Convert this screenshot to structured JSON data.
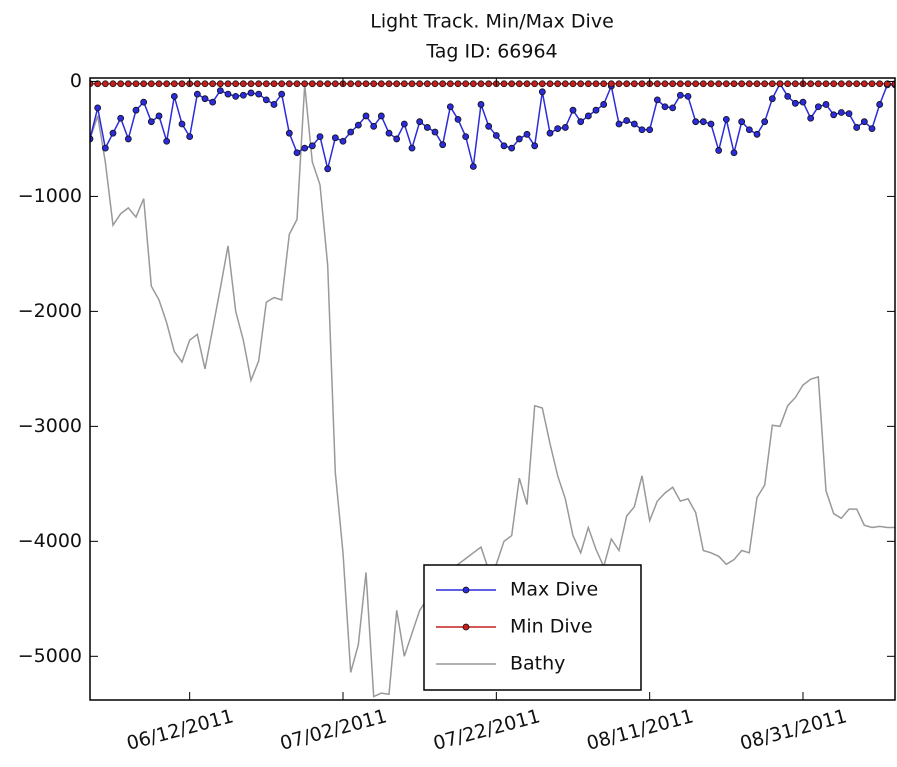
{
  "chart_data": {
    "type": "line",
    "title": "Light Track. Min/Max Dive",
    "subtitle": "Tag ID: 66964",
    "x": [
      "2011-05-30",
      "2011-05-31",
      "2011-06-01",
      "2011-06-02",
      "2011-06-03",
      "2011-06-04",
      "2011-06-05",
      "2011-06-06",
      "2011-06-07",
      "2011-06-08",
      "2011-06-09",
      "2011-06-10",
      "2011-06-11",
      "2011-06-12",
      "2011-06-13",
      "2011-06-14",
      "2011-06-15",
      "2011-06-16",
      "2011-06-17",
      "2011-06-18",
      "2011-06-19",
      "2011-06-20",
      "2011-06-21",
      "2011-06-22",
      "2011-06-23",
      "2011-06-24",
      "2011-06-25",
      "2011-06-26",
      "2011-06-27",
      "2011-06-28",
      "2011-06-29",
      "2011-06-30",
      "2011-07-01",
      "2011-07-02",
      "2011-07-03",
      "2011-07-04",
      "2011-07-05",
      "2011-07-06",
      "2011-07-07",
      "2011-07-08",
      "2011-07-09",
      "2011-07-10",
      "2011-07-11",
      "2011-07-12",
      "2011-07-13",
      "2011-07-14",
      "2011-07-15",
      "2011-07-16",
      "2011-07-17",
      "2011-07-18",
      "2011-07-19",
      "2011-07-20",
      "2011-07-21",
      "2011-07-22",
      "2011-07-23",
      "2011-07-24",
      "2011-07-25",
      "2011-07-26",
      "2011-07-27",
      "2011-07-28",
      "2011-07-29",
      "2011-07-30",
      "2011-07-31",
      "2011-08-01",
      "2011-08-02",
      "2011-08-03",
      "2011-08-04",
      "2011-08-05",
      "2011-08-06",
      "2011-08-07",
      "2011-08-08",
      "2011-08-09",
      "2011-08-10",
      "2011-08-11",
      "2011-08-12",
      "2011-08-13",
      "2011-08-14",
      "2011-08-15",
      "2011-08-16",
      "2011-08-17",
      "2011-08-18",
      "2011-08-19",
      "2011-08-20",
      "2011-08-21",
      "2011-08-22",
      "2011-08-23",
      "2011-08-24",
      "2011-08-25",
      "2011-08-26",
      "2011-08-27",
      "2011-08-28",
      "2011-08-29",
      "2011-08-30",
      "2011-08-31",
      "2011-09-01",
      "2011-09-02",
      "2011-09-03",
      "2011-09-04",
      "2011-09-05",
      "2011-09-06",
      "2011-09-07",
      "2011-09-08",
      "2011-09-09",
      "2011-09-10",
      "2011-09-11",
      "2011-09-12"
    ],
    "series": [
      {
        "name": "Max Dive",
        "color": "#2b2bdc",
        "marker": true,
        "values": [
          -500,
          -230,
          -580,
          -450,
          -320,
          -500,
          -250,
          -180,
          -350,
          -300,
          -520,
          -130,
          -370,
          -480,
          -110,
          -150,
          -180,
          -80,
          -110,
          -130,
          -120,
          -100,
          -110,
          -160,
          -200,
          -110,
          -450,
          -620,
          -580,
          -560,
          -480,
          -760,
          -490,
          -520,
          -440,
          -380,
          -300,
          -390,
          -300,
          -450,
          -500,
          -370,
          -580,
          -350,
          -400,
          -440,
          -550,
          -220,
          -330,
          -480,
          -740,
          -200,
          -390,
          -470,
          -560,
          -580,
          -500,
          -460,
          -560,
          -90,
          -450,
          -410,
          -400,
          -250,
          -350,
          -300,
          -250,
          -200,
          -40,
          -370,
          -340,
          -370,
          -420,
          -420,
          -160,
          -220,
          -230,
          -120,
          -130,
          -350,
          -350,
          -370,
          -600,
          -330,
          -620,
          -350,
          -420,
          -460,
          -350,
          -150,
          -20,
          -130,
          -190,
          -180,
          -320,
          -220,
          -200,
          -290,
          -270,
          -280,
          -400,
          -350,
          -410,
          -200,
          -30,
          -30
        ]
      },
      {
        "name": "Min Dive",
        "color": "#c42020",
        "marker": true,
        "values": [
          -20,
          -20,
          -20,
          -20,
          -20,
          -20,
          -20,
          -20,
          -20,
          -20,
          -20,
          -20,
          -20,
          -20,
          -20,
          -20,
          -20,
          -20,
          -20,
          -20,
          -20,
          -20,
          -20,
          -20,
          -20,
          -20,
          -20,
          -20,
          -20,
          -20,
          -20,
          -20,
          -20,
          -20,
          -20,
          -20,
          -20,
          -20,
          -20,
          -20,
          -20,
          -20,
          -20,
          -20,
          -20,
          -20,
          -20,
          -20,
          -20,
          -20,
          -20,
          -20,
          -20,
          -20,
          -20,
          -20,
          -20,
          -20,
          -20,
          -20,
          -20,
          -20,
          -20,
          -20,
          -20,
          -20,
          -20,
          -20,
          -20,
          -20,
          -20,
          -20,
          -20,
          -20,
          -20,
          -20,
          -20,
          -20,
          -20,
          -20,
          -20,
          -20,
          -20,
          -20,
          -20,
          -20,
          -20,
          -20,
          -20,
          -20,
          -20,
          -20,
          -20,
          -20,
          -20,
          -20,
          -20,
          -20,
          -20,
          -20,
          -20,
          -20,
          -20,
          -20,
          -20,
          -20
        ]
      },
      {
        "name": "Bathy",
        "color": "#999999",
        "marker": false,
        "values": [
          -500,
          -300,
          -700,
          -1250,
          -1150,
          -1100,
          -1180,
          -1020,
          -1780,
          -1900,
          -2100,
          -2350,
          -2440,
          -2250,
          -2200,
          -2500,
          -2150,
          -1800,
          -1430,
          -2000,
          -2250,
          -2600,
          -2430,
          -1920,
          -1880,
          -1900,
          -1330,
          -1200,
          -30,
          -700,
          -900,
          -1600,
          -3400,
          -4100,
          -5140,
          -4900,
          -4270,
          -5350,
          -5320,
          -5330,
          -4600,
          -5000,
          -4800,
          -4600,
          -4500,
          -4400,
          -4300,
          -4250,
          -4200,
          -4150,
          -4100,
          -4050,
          -4250,
          -4200,
          -4000,
          -3950,
          -3450,
          -3680,
          -2820,
          -2840,
          -3150,
          -3430,
          -3630,
          -3950,
          -4100,
          -3880,
          -4070,
          -4220,
          -3980,
          -4080,
          -3780,
          -3700,
          -3430,
          -3820,
          -3650,
          -3580,
          -3530,
          -3650,
          -3630,
          -3750,
          -4080,
          -4100,
          -4130,
          -4200,
          -4160,
          -4080,
          -4100,
          -3620,
          -3510,
          -2990,
          -3000,
          -2820,
          -2750,
          -2640,
          -2590,
          -2570,
          -3560,
          -3760,
          -3800,
          -3720,
          -3720,
          -3860,
          -3880,
          -3870,
          -3880,
          -3880
        ]
      }
    ],
    "xlim": [
      "2011-05-30",
      "2011-09-12"
    ],
    "xticks": [
      {
        "value": "2011-06-12",
        "label": "06/12/2011"
      },
      {
        "value": "2011-07-02",
        "label": "07/02/2011"
      },
      {
        "value": "2011-07-22",
        "label": "07/22/2011"
      },
      {
        "value": "2011-08-11",
        "label": "08/11/2011"
      },
      {
        "value": "2011-08-31",
        "label": "08/31/2011"
      }
    ],
    "ylim": [
      -5380,
      30
    ],
    "yticks": [
      {
        "value": 0,
        "label": "0"
      },
      {
        "value": -1000,
        "label": "−1000"
      },
      {
        "value": -2000,
        "label": "−2000"
      },
      {
        "value": -3000,
        "label": "−3000"
      },
      {
        "value": -4000,
        "label": "−4000"
      },
      {
        "value": -5000,
        "label": "−5000"
      }
    ],
    "legend": "lower center"
  }
}
